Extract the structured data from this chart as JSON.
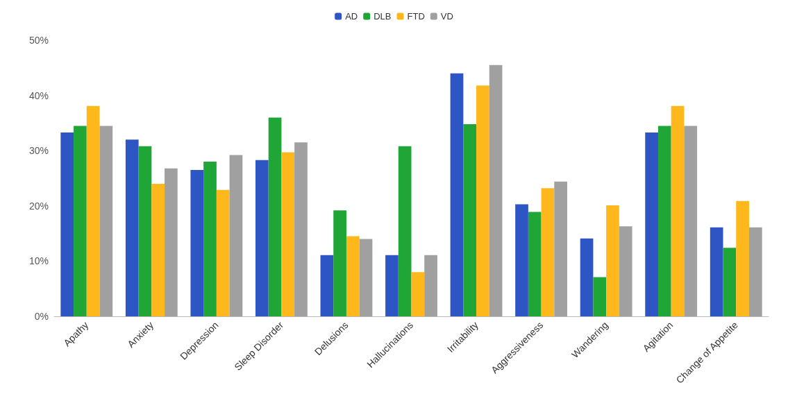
{
  "chart_data": {
    "type": "bar",
    "categories": [
      "Apathy",
      "Anxiety",
      "Depression",
      "Sleep Disorder",
      "Delusions",
      "Hallucinations",
      "Irritability",
      "Aggressiveness",
      "Wandering",
      "Agitation",
      "Change of Appetite"
    ],
    "series": [
      {
        "name": "AD",
        "color": "#2d55c4",
        "values": [
          33.3,
          32,
          26.5,
          28.3,
          11.1,
          11.1,
          44,
          20.3,
          14.1,
          33.3,
          16.1
        ]
      },
      {
        "name": "DLB",
        "color": "#1fa637",
        "values": [
          34.5,
          30.8,
          28,
          36,
          19.2,
          30.8,
          34.8,
          18.9,
          7.1,
          34.5,
          12.4
        ]
      },
      {
        "name": "FTD",
        "color": "#ffb81c",
        "values": [
          38.1,
          24,
          22.9,
          29.7,
          14.5,
          8,
          41.8,
          23.2,
          20.1,
          38.1,
          20.9
        ]
      },
      {
        "name": "VD",
        "color": "#a0a0a0",
        "values": [
          34.5,
          26.8,
          29.2,
          31.5,
          14,
          11.1,
          45.5,
          24.4,
          16.3,
          34.5,
          16.1
        ]
      }
    ],
    "ylim": [
      0,
      50
    ],
    "yticks": [
      {
        "value": 0,
        "label": "0%"
      },
      {
        "value": 10,
        "label": "10%"
      },
      {
        "value": 20,
        "label": "20%"
      },
      {
        "value": 30,
        "label": "30%"
      },
      {
        "value": 40,
        "label": "40%"
      },
      {
        "value": 50,
        "label": "50%"
      }
    ],
    "grid": false,
    "legend": "top"
  }
}
